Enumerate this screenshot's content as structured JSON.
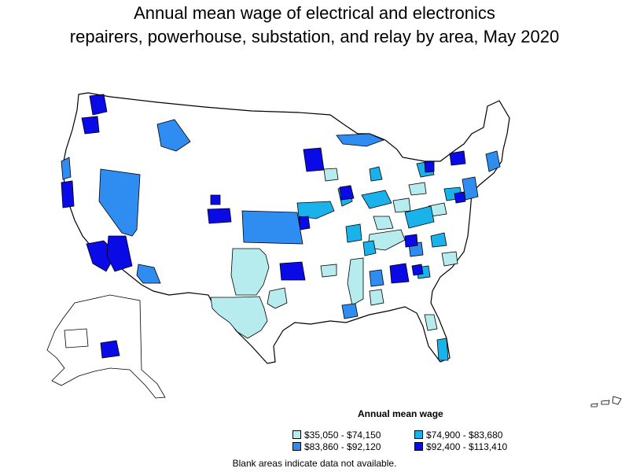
{
  "title_line1": "Annual mean wage of electrical and electronics",
  "title_line2": "repairers, powerhouse, substation, and relay by area, May 2020",
  "legend": {
    "title": "Annual mean wage",
    "items": [
      {
        "label": "$35,050 - $74,150",
        "color": "#b7ecee"
      },
      {
        "label": "$74,900 - $83,680",
        "color": "#1ab2ea"
      },
      {
        "label": "$83,860 - $92,120",
        "color": "#2f8cf0"
      },
      {
        "label": "$92,400 - $113,410",
        "color": "#0a0ae6"
      }
    ]
  },
  "note": "Blank areas indicate data not available.",
  "colors": {
    "outline": "#000000",
    "no_data": "#ffffff"
  }
}
